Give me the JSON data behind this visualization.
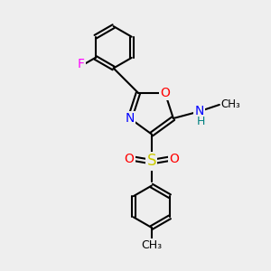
{
  "bg_color": "#eeeeee",
  "bond_color": "#000000",
  "atom_colors": {
    "N": "#0000ff",
    "O": "#ff0000",
    "S": "#cccc00",
    "F": "#ff00ff",
    "H": "#008080",
    "C": "#000000"
  },
  "font_size": 10,
  "title": ""
}
